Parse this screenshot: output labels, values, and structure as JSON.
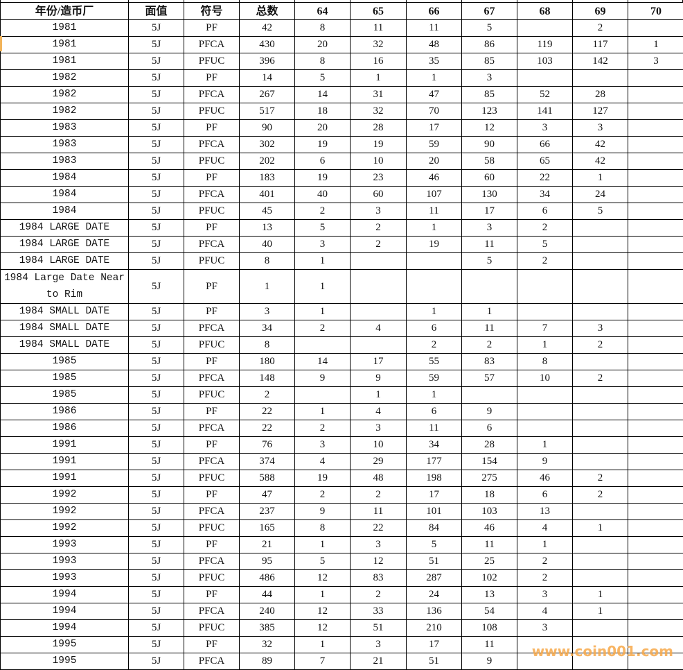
{
  "headers": [
    "年份/造币厂",
    "面值",
    "符号",
    "总数",
    "64",
    "65",
    "66",
    "67",
    "68",
    "69",
    "70"
  ],
  "rows": [
    [
      "1981",
      "5J",
      "PF",
      "42",
      "8",
      "11",
      "11",
      "5",
      "",
      "2",
      ""
    ],
    [
      "1981",
      "5J",
      "PFCA",
      "430",
      "20",
      "32",
      "48",
      "86",
      "119",
      "117",
      "1"
    ],
    [
      "1981",
      "5J",
      "PFUC",
      "396",
      "8",
      "16",
      "35",
      "85",
      "103",
      "142",
      "3"
    ],
    [
      "1982",
      "5J",
      "PF",
      "14",
      "5",
      "1",
      "1",
      "3",
      "",
      "",
      ""
    ],
    [
      "1982",
      "5J",
      "PFCA",
      "267",
      "14",
      "31",
      "47",
      "85",
      "52",
      "28",
      ""
    ],
    [
      "1982",
      "5J",
      "PFUC",
      "517",
      "18",
      "32",
      "70",
      "123",
      "141",
      "127",
      ""
    ],
    [
      "1983",
      "5J",
      "PF",
      "90",
      "20",
      "28",
      "17",
      "12",
      "3",
      "3",
      ""
    ],
    [
      "1983",
      "5J",
      "PFCA",
      "302",
      "19",
      "19",
      "59",
      "90",
      "66",
      "42",
      ""
    ],
    [
      "1983",
      "5J",
      "PFUC",
      "202",
      "6",
      "10",
      "20",
      "58",
      "65",
      "42",
      ""
    ],
    [
      "1984",
      "5J",
      "PF",
      "183",
      "19",
      "23",
      "46",
      "60",
      "22",
      "1",
      ""
    ],
    [
      "1984",
      "5J",
      "PFCA",
      "401",
      "40",
      "60",
      "107",
      "130",
      "34",
      "24",
      ""
    ],
    [
      "1984",
      "5J",
      "PFUC",
      "45",
      "2",
      "3",
      "11",
      "17",
      "6",
      "5",
      ""
    ],
    [
      "1984 LARGE DATE",
      "5J",
      "PF",
      "13",
      "5",
      "2",
      "1",
      "3",
      "2",
      "",
      ""
    ],
    [
      "1984 LARGE DATE",
      "5J",
      "PFCA",
      "40",
      "3",
      "2",
      "19",
      "11",
      "5",
      "",
      ""
    ],
    [
      "1984 LARGE DATE",
      "5J",
      "PFUC",
      "8",
      "1",
      "",
      "",
      "5",
      "2",
      "",
      ""
    ],
    [
      "1984 Large Date Near to Rim",
      "5J",
      "PF",
      "1",
      "1",
      "",
      "",
      "",
      "",
      "",
      ""
    ],
    [
      "1984 SMALL DATE",
      "5J",
      "PF",
      "3",
      "1",
      "",
      "1",
      "1",
      "",
      "",
      ""
    ],
    [
      "1984 SMALL DATE",
      "5J",
      "PFCA",
      "34",
      "2",
      "4",
      "6",
      "11",
      "7",
      "3",
      ""
    ],
    [
      "1984 SMALL DATE",
      "5J",
      "PFUC",
      "8",
      "",
      "",
      "2",
      "2",
      "1",
      "2",
      ""
    ],
    [
      "1985",
      "5J",
      "PF",
      "180",
      "14",
      "17",
      "55",
      "83",
      "8",
      "",
      ""
    ],
    [
      "1985",
      "5J",
      "PFCA",
      "148",
      "9",
      "9",
      "59",
      "57",
      "10",
      "2",
      ""
    ],
    [
      "1985",
      "5J",
      "PFUC",
      "2",
      "",
      "1",
      "1",
      "",
      "",
      "",
      ""
    ],
    [
      "1986",
      "5J",
      "PF",
      "22",
      "1",
      "4",
      "6",
      "9",
      "",
      "",
      ""
    ],
    [
      "1986",
      "5J",
      "PFCA",
      "22",
      "2",
      "3",
      "11",
      "6",
      "",
      "",
      ""
    ],
    [
      "1991",
      "5J",
      "PF",
      "76",
      "3",
      "10",
      "34",
      "28",
      "1",
      "",
      ""
    ],
    [
      "1991",
      "5J",
      "PFCA",
      "374",
      "4",
      "29",
      "177",
      "154",
      "9",
      "",
      ""
    ],
    [
      "1991",
      "5J",
      "PFUC",
      "588",
      "19",
      "48",
      "198",
      "275",
      "46",
      "2",
      ""
    ],
    [
      "1992",
      "5J",
      "PF",
      "47",
      "2",
      "2",
      "17",
      "18",
      "6",
      "2",
      ""
    ],
    [
      "1992",
      "5J",
      "PFCA",
      "237",
      "9",
      "11",
      "101",
      "103",
      "13",
      "",
      ""
    ],
    [
      "1992",
      "5J",
      "PFUC",
      "165",
      "8",
      "22",
      "84",
      "46",
      "4",
      "1",
      ""
    ],
    [
      "1993",
      "5J",
      "PF",
      "21",
      "1",
      "3",
      "5",
      "11",
      "1",
      "",
      ""
    ],
    [
      "1993",
      "5J",
      "PFCA",
      "95",
      "5",
      "12",
      "51",
      "25",
      "2",
      "",
      ""
    ],
    [
      "1993",
      "5J",
      "PFUC",
      "486",
      "12",
      "83",
      "287",
      "102",
      "2",
      "",
      ""
    ],
    [
      "1994",
      "5J",
      "PF",
      "44",
      "1",
      "2",
      "24",
      "13",
      "3",
      "1",
      ""
    ],
    [
      "1994",
      "5J",
      "PFCA",
      "240",
      "12",
      "33",
      "136",
      "54",
      "4",
      "1",
      ""
    ],
    [
      "1994",
      "5J",
      "PFUC",
      "385",
      "12",
      "51",
      "210",
      "108",
      "3",
      "",
      ""
    ],
    [
      "1995",
      "5J",
      "PF",
      "32",
      "1",
      "3",
      "17",
      "11",
      "",
      "",
      ""
    ],
    [
      "1995",
      "5J",
      "PFCA",
      "89",
      "7",
      "21",
      "51",
      "9",
      "",
      "",
      ""
    ]
  ],
  "watermark": "www.coin001.com",
  "colors": {
    "watermark": "#f7a94a",
    "selected_row_marker": "#f2b45a"
  }
}
